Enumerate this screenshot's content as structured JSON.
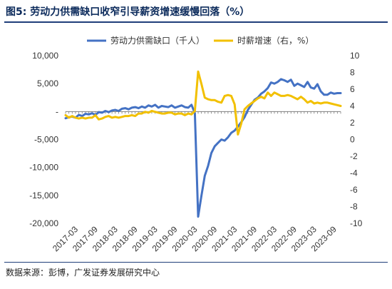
{
  "figure": {
    "title": "图5:  劳动力供需缺口收窄引导薪资增速缓慢回落（%）",
    "source": "数据来源：彭博，广发证券发展研究中心"
  },
  "chart_data": {
    "type": "line",
    "title": "",
    "xlabel": "",
    "ylabel": "",
    "y_left_lim": [
      -20000,
      10000
    ],
    "y_left_ticks": [
      "10,000",
      "5,000",
      "-",
      "-5,000",
      "-10,000",
      "-15,000",
      "-20,000"
    ],
    "y_left_tick_values": [
      10000,
      5000,
      0,
      -5000,
      -10000,
      -15000,
      -20000
    ],
    "y_right_lim": [
      -10,
      10
    ],
    "y_right_ticks": [
      "10",
      "8",
      "6",
      "4",
      "2",
      "0",
      "-2",
      "-4",
      "-6",
      "-8",
      "-10"
    ],
    "y_right_tick_values": [
      10,
      8,
      6,
      4,
      2,
      0,
      -2,
      -4,
      -6,
      -8,
      -10
    ],
    "x_ticks": [
      "2017-03",
      "2017-09",
      "2018-03",
      "2018-09",
      "2019-03",
      "2019-09",
      "2020-03",
      "2020-09",
      "2021-03",
      "2021-09",
      "2022-03",
      "2022-09",
      "2023-03",
      "2023-09"
    ],
    "x_range": [
      "2016-12",
      "2023-11"
    ],
    "legend_position": "top",
    "grid": false,
    "series": [
      {
        "name": "劳动力供需缺口（千人）",
        "axis": "left",
        "color": "#4472c4",
        "points": [
          [
            "2016-12",
            -1200
          ],
          [
            "2017-01",
            -1000
          ],
          [
            "2017-02",
            -900
          ],
          [
            "2017-03",
            -1100
          ],
          [
            "2017-04",
            -600
          ],
          [
            "2017-05",
            -800
          ],
          [
            "2017-06",
            -400
          ],
          [
            "2017-07",
            -500
          ],
          [
            "2017-08",
            -300
          ],
          [
            "2017-09",
            -600
          ],
          [
            "2017-10",
            -100
          ],
          [
            "2017-11",
            -200
          ],
          [
            "2017-12",
            100
          ],
          [
            "2018-01",
            -100
          ],
          [
            "2018-02",
            200
          ],
          [
            "2018-03",
            300
          ],
          [
            "2018-04",
            100
          ],
          [
            "2018-05",
            500
          ],
          [
            "2018-06",
            600
          ],
          [
            "2018-07",
            400
          ],
          [
            "2018-08",
            700
          ],
          [
            "2018-09",
            800
          ],
          [
            "2018-10",
            600
          ],
          [
            "2018-11",
            900
          ],
          [
            "2018-12",
            700
          ],
          [
            "2019-01",
            1100
          ],
          [
            "2019-02",
            900
          ],
          [
            "2019-03",
            1200
          ],
          [
            "2019-04",
            700
          ],
          [
            "2019-05",
            1000
          ],
          [
            "2019-06",
            900
          ],
          [
            "2019-07",
            800
          ],
          [
            "2019-08",
            1100
          ],
          [
            "2019-09",
            700
          ],
          [
            "2019-10",
            900
          ],
          [
            "2019-11",
            1100
          ],
          [
            "2019-12",
            800
          ],
          [
            "2020-01",
            700
          ],
          [
            "2020-02",
            1200
          ],
          [
            "2020-03",
            -300
          ],
          [
            "2020-04",
            -18800
          ],
          [
            "2020-05",
            -15000
          ],
          [
            "2020-06",
            -11500
          ],
          [
            "2020-07",
            -9700
          ],
          [
            "2020-08",
            -7400
          ],
          [
            "2020-09",
            -6200
          ],
          [
            "2020-10",
            -5600
          ],
          [
            "2020-11",
            -5000
          ],
          [
            "2020-12",
            -5200
          ],
          [
            "2021-01",
            -4600
          ],
          [
            "2021-02",
            -3800
          ],
          [
            "2021-03",
            -3400
          ],
          [
            "2021-04",
            -2700
          ],
          [
            "2021-05",
            -1900
          ],
          [
            "2021-06",
            -1000
          ],
          [
            "2021-07",
            300
          ],
          [
            "2021-08",
            1200
          ],
          [
            "2021-09",
            2100
          ],
          [
            "2021-10",
            2500
          ],
          [
            "2021-11",
            3200
          ],
          [
            "2021-12",
            3600
          ],
          [
            "2022-01",
            4200
          ],
          [
            "2022-02",
            5200
          ],
          [
            "2022-03",
            5000
          ],
          [
            "2022-04",
            5300
          ],
          [
            "2022-05",
            5800
          ],
          [
            "2022-06",
            5600
          ],
          [
            "2022-07",
            5300
          ],
          [
            "2022-08",
            5700
          ],
          [
            "2022-09",
            4600
          ],
          [
            "2022-10",
            5000
          ],
          [
            "2022-11",
            4700
          ],
          [
            "2022-12",
            4400
          ],
          [
            "2023-01",
            5300
          ],
          [
            "2023-02",
            4300
          ],
          [
            "2023-03",
            4100
          ],
          [
            "2023-04",
            4900
          ],
          [
            "2023-05",
            3600
          ],
          [
            "2023-06",
            3000
          ],
          [
            "2023-07",
            3000
          ],
          [
            "2023-08",
            3400
          ],
          [
            "2023-09",
            3200
          ],
          [
            "2023-10",
            3300
          ],
          [
            "2023-11",
            3300
          ]
        ]
      },
      {
        "name": "时薪增速（右，%）",
        "axis": "right",
        "color": "#f2c000",
        "points": [
          [
            "2016-12",
            2.9
          ],
          [
            "2017-01",
            2.6
          ],
          [
            "2017-02",
            2.8
          ],
          [
            "2017-03",
            2.6
          ],
          [
            "2017-04",
            2.5
          ],
          [
            "2017-05",
            2.6
          ],
          [
            "2017-06",
            2.5
          ],
          [
            "2017-07",
            2.6
          ],
          [
            "2017-08",
            2.6
          ],
          [
            "2017-09",
            2.9
          ],
          [
            "2017-10",
            2.4
          ],
          [
            "2017-11",
            2.5
          ],
          [
            "2017-12",
            2.7
          ],
          [
            "2018-01",
            2.8
          ],
          [
            "2018-02",
            2.6
          ],
          [
            "2018-03",
            2.7
          ],
          [
            "2018-04",
            2.6
          ],
          [
            "2018-05",
            2.7
          ],
          [
            "2018-06",
            2.8
          ],
          [
            "2018-07",
            2.8
          ],
          [
            "2018-08",
            2.9
          ],
          [
            "2018-09",
            2.8
          ],
          [
            "2018-10",
            3.1
          ],
          [
            "2018-11",
            3.1
          ],
          [
            "2018-12",
            3.3
          ],
          [
            "2019-01",
            3.2
          ],
          [
            "2019-02",
            3.4
          ],
          [
            "2019-03",
            3.3
          ],
          [
            "2019-04",
            3.2
          ],
          [
            "2019-05",
            3.1
          ],
          [
            "2019-06",
            3.1
          ],
          [
            "2019-07",
            3.2
          ],
          [
            "2019-08",
            3.2
          ],
          [
            "2019-09",
            3.0
          ],
          [
            "2019-10",
            3.1
          ],
          [
            "2019-11",
            3.1
          ],
          [
            "2019-12",
            2.9
          ],
          [
            "2020-01",
            3.1
          ],
          [
            "2020-02",
            3.0
          ],
          [
            "2020-03",
            3.4
          ],
          [
            "2020-04",
            8.1
          ],
          [
            "2020-05",
            6.6
          ],
          [
            "2020-06",
            5.0
          ],
          [
            "2020-07",
            4.8
          ],
          [
            "2020-08",
            4.7
          ],
          [
            "2020-09",
            4.7
          ],
          [
            "2020-10",
            4.5
          ],
          [
            "2020-11",
            4.4
          ],
          [
            "2020-12",
            5.2
          ],
          [
            "2021-01",
            5.3
          ],
          [
            "2021-02",
            5.2
          ],
          [
            "2021-03",
            4.2
          ],
          [
            "2021-04",
            0.6
          ],
          [
            "2021-05",
            1.9
          ],
          [
            "2021-06",
            3.6
          ],
          [
            "2021-07",
            4.0
          ],
          [
            "2021-08",
            4.3
          ],
          [
            "2021-09",
            4.6
          ],
          [
            "2021-10",
            4.9
          ],
          [
            "2021-11",
            5.1
          ],
          [
            "2021-12",
            4.9
          ],
          [
            "2022-01",
            5.6
          ],
          [
            "2022-02",
            5.2
          ],
          [
            "2022-03",
            5.6
          ],
          [
            "2022-04",
            5.4
          ],
          [
            "2022-05",
            5.2
          ],
          [
            "2022-06",
            5.2
          ],
          [
            "2022-07",
            5.3
          ],
          [
            "2022-08",
            5.2
          ],
          [
            "2022-09",
            5.0
          ],
          [
            "2022-10",
            4.8
          ],
          [
            "2022-11",
            5.1
          ],
          [
            "2022-12",
            4.8
          ],
          [
            "2023-01",
            4.4
          ],
          [
            "2023-02",
            4.6
          ],
          [
            "2023-03",
            4.3
          ],
          [
            "2023-04",
            4.4
          ],
          [
            "2023-05",
            4.3
          ],
          [
            "2023-06",
            4.4
          ],
          [
            "2023-07",
            4.4
          ],
          [
            "2023-08",
            4.3
          ],
          [
            "2023-09",
            4.2
          ],
          [
            "2023-10",
            4.1
          ],
          [
            "2023-11",
            4.0
          ]
        ]
      }
    ]
  }
}
